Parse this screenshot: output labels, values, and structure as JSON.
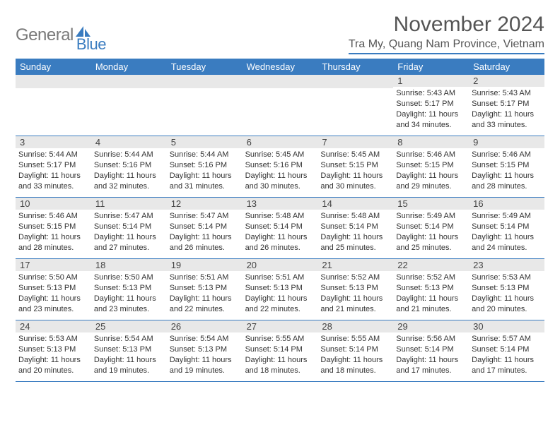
{
  "logo": {
    "text1": "General",
    "text2": "Blue",
    "shape_color": "#3a7cc0"
  },
  "title": "November 2024",
  "subtitle": "Tra My, Quang Nam Province, Vietnam",
  "accent_color": "#3a7cc0",
  "header_bg": "#e8e8e8",
  "day_names": [
    "Sunday",
    "Monday",
    "Tuesday",
    "Wednesday",
    "Thursday",
    "Friday",
    "Saturday"
  ],
  "weeks": [
    [
      null,
      null,
      null,
      null,
      null,
      {
        "n": "1",
        "sr": "5:43 AM",
        "ss": "5:17 PM",
        "dl": "11 hours and 34 minutes."
      },
      {
        "n": "2",
        "sr": "5:43 AM",
        "ss": "5:17 PM",
        "dl": "11 hours and 33 minutes."
      }
    ],
    [
      {
        "n": "3",
        "sr": "5:44 AM",
        "ss": "5:17 PM",
        "dl": "11 hours and 33 minutes."
      },
      {
        "n": "4",
        "sr": "5:44 AM",
        "ss": "5:16 PM",
        "dl": "11 hours and 32 minutes."
      },
      {
        "n": "5",
        "sr": "5:44 AM",
        "ss": "5:16 PM",
        "dl": "11 hours and 31 minutes."
      },
      {
        "n": "6",
        "sr": "5:45 AM",
        "ss": "5:16 PM",
        "dl": "11 hours and 30 minutes."
      },
      {
        "n": "7",
        "sr": "5:45 AM",
        "ss": "5:15 PM",
        "dl": "11 hours and 30 minutes."
      },
      {
        "n": "8",
        "sr": "5:46 AM",
        "ss": "5:15 PM",
        "dl": "11 hours and 29 minutes."
      },
      {
        "n": "9",
        "sr": "5:46 AM",
        "ss": "5:15 PM",
        "dl": "11 hours and 28 minutes."
      }
    ],
    [
      {
        "n": "10",
        "sr": "5:46 AM",
        "ss": "5:15 PM",
        "dl": "11 hours and 28 minutes."
      },
      {
        "n": "11",
        "sr": "5:47 AM",
        "ss": "5:14 PM",
        "dl": "11 hours and 27 minutes."
      },
      {
        "n": "12",
        "sr": "5:47 AM",
        "ss": "5:14 PM",
        "dl": "11 hours and 26 minutes."
      },
      {
        "n": "13",
        "sr": "5:48 AM",
        "ss": "5:14 PM",
        "dl": "11 hours and 26 minutes."
      },
      {
        "n": "14",
        "sr": "5:48 AM",
        "ss": "5:14 PM",
        "dl": "11 hours and 25 minutes."
      },
      {
        "n": "15",
        "sr": "5:49 AM",
        "ss": "5:14 PM",
        "dl": "11 hours and 25 minutes."
      },
      {
        "n": "16",
        "sr": "5:49 AM",
        "ss": "5:14 PM",
        "dl": "11 hours and 24 minutes."
      }
    ],
    [
      {
        "n": "17",
        "sr": "5:50 AM",
        "ss": "5:13 PM",
        "dl": "11 hours and 23 minutes."
      },
      {
        "n": "18",
        "sr": "5:50 AM",
        "ss": "5:13 PM",
        "dl": "11 hours and 23 minutes."
      },
      {
        "n": "19",
        "sr": "5:51 AM",
        "ss": "5:13 PM",
        "dl": "11 hours and 22 minutes."
      },
      {
        "n": "20",
        "sr": "5:51 AM",
        "ss": "5:13 PM",
        "dl": "11 hours and 22 minutes."
      },
      {
        "n": "21",
        "sr": "5:52 AM",
        "ss": "5:13 PM",
        "dl": "11 hours and 21 minutes."
      },
      {
        "n": "22",
        "sr": "5:52 AM",
        "ss": "5:13 PM",
        "dl": "11 hours and 21 minutes."
      },
      {
        "n": "23",
        "sr": "5:53 AM",
        "ss": "5:13 PM",
        "dl": "11 hours and 20 minutes."
      }
    ],
    [
      {
        "n": "24",
        "sr": "5:53 AM",
        "ss": "5:13 PM",
        "dl": "11 hours and 20 minutes."
      },
      {
        "n": "25",
        "sr": "5:54 AM",
        "ss": "5:13 PM",
        "dl": "11 hours and 19 minutes."
      },
      {
        "n": "26",
        "sr": "5:54 AM",
        "ss": "5:13 PM",
        "dl": "11 hours and 19 minutes."
      },
      {
        "n": "27",
        "sr": "5:55 AM",
        "ss": "5:14 PM",
        "dl": "11 hours and 18 minutes."
      },
      {
        "n": "28",
        "sr": "5:55 AM",
        "ss": "5:14 PM",
        "dl": "11 hours and 18 minutes."
      },
      {
        "n": "29",
        "sr": "5:56 AM",
        "ss": "5:14 PM",
        "dl": "11 hours and 17 minutes."
      },
      {
        "n": "30",
        "sr": "5:57 AM",
        "ss": "5:14 PM",
        "dl": "11 hours and 17 minutes."
      }
    ]
  ],
  "labels": {
    "sunrise": "Sunrise:",
    "sunset": "Sunset:",
    "daylight": "Daylight:"
  }
}
